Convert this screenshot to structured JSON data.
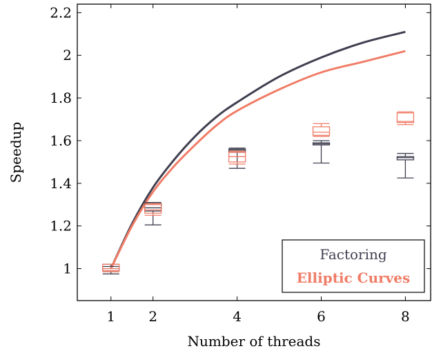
{
  "chart_data": {
    "type": "line",
    "xlabel": "Number of threads",
    "ylabel": "Speedup",
    "xlim": [
      0.2,
      8.6
    ],
    "ylim": [
      0.85,
      2.24
    ],
    "xticks": [
      1,
      2,
      4,
      6,
      8
    ],
    "xtick_labels": [
      "1",
      "2",
      "4",
      "6",
      "8"
    ],
    "yticks": [
      1,
      1.2,
      1.4,
      1.6,
      1.8,
      2,
      2.2
    ],
    "ytick_labels": [
      "1",
      "1.2",
      "1.4",
      "1.6",
      "1.8",
      "2",
      "2.2"
    ],
    "grid": false,
    "legend_position": "bottom-right",
    "series": [
      {
        "name": "Factoring",
        "color": "#3f3f50",
        "curve": {
          "x": [
            1,
            1.5,
            2,
            2.5,
            3,
            3.5,
            4,
            5,
            6,
            7,
            8
          ],
          "y": [
            1.0,
            1.21,
            1.38,
            1.51,
            1.62,
            1.71,
            1.78,
            1.9,
            1.99,
            2.06,
            2.11
          ]
        },
        "boxes": [
          {
            "x": 1,
            "min": 0.975,
            "q1": 0.99,
            "median": 1.0,
            "q3": 1.01,
            "max": 1.02
          },
          {
            "x": 2,
            "min": 1.205,
            "q1": 1.27,
            "median": 1.285,
            "q3": 1.305,
            "max": 1.31
          },
          {
            "x": 4,
            "min": 1.47,
            "q1": 1.545,
            "median": 1.555,
            "q3": 1.56,
            "max": 1.565
          },
          {
            "x": 6,
            "min": 1.495,
            "q1": 1.58,
            "median": 1.585,
            "q3": 1.59,
            "max": 1.6
          },
          {
            "x": 8,
            "min": 1.425,
            "q1": 1.51,
            "median": 1.52,
            "q3": 1.525,
            "max": 1.54
          }
        ]
      },
      {
        "name": "Elliptic Curves",
        "color": "#f07c66",
        "curve": {
          "x": [
            1,
            1.5,
            2,
            2.5,
            3,
            3.5,
            4,
            5,
            6,
            7,
            8
          ],
          "y": [
            1.0,
            1.2,
            1.36,
            1.48,
            1.58,
            1.67,
            1.74,
            1.84,
            1.92,
            1.97,
            2.02
          ]
        },
        "boxes": [
          {
            "x": 1,
            "min": 0.985,
            "q1": 0.99,
            "median": 1.0,
            "q3": 1.02,
            "max": 1.02
          },
          {
            "x": 2,
            "min": 1.25,
            "q1": 1.26,
            "median": 1.275,
            "q3": 1.3,
            "max": 1.305
          },
          {
            "x": 4,
            "min": 1.49,
            "q1": 1.5,
            "median": 1.525,
            "q3": 1.545,
            "max": 1.55
          },
          {
            "x": 6,
            "min": 1.62,
            "q1": 1.625,
            "median": 1.64,
            "q3": 1.665,
            "max": 1.68
          },
          {
            "x": 8,
            "min": 1.675,
            "q1": 1.685,
            "median": 1.69,
            "q3": 1.73,
            "max": 1.735
          }
        ]
      }
    ]
  }
}
